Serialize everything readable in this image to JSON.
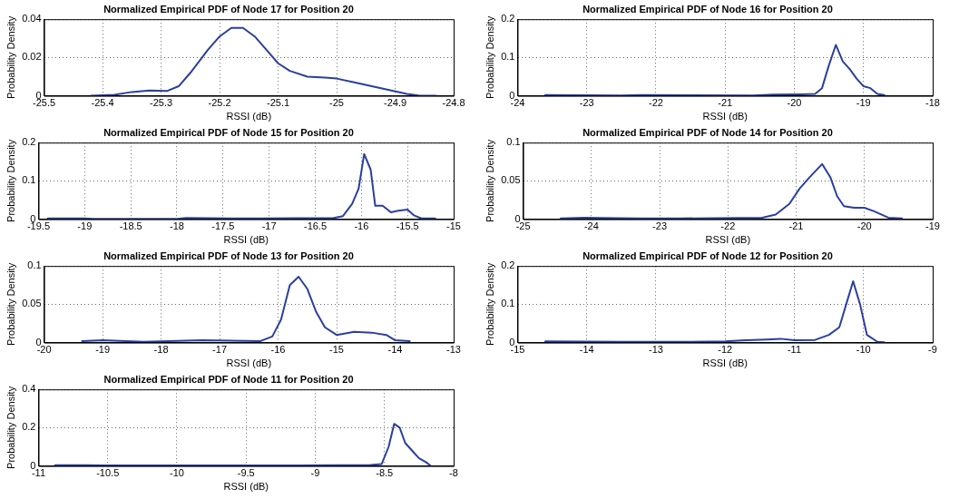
{
  "chart_data": [
    {
      "type": "line",
      "title": "Normalized Empirical PDF of Node 17 for Position 20",
      "xlabel": "RSSI (dB)",
      "ylabel": "Probability Density",
      "grid": true,
      "xlim": [
        -25.5,
        -24.8
      ],
      "xticks": [
        -25.5,
        -25.4,
        -25.3,
        -25.2,
        -25.1,
        -25,
        -24.9,
        -24.8
      ],
      "ylim": [
        0,
        0.04
      ],
      "yticks": [
        0,
        0.02,
        0.04
      ],
      "x": [
        -25.42,
        -25.38,
        -25.35,
        -25.32,
        -25.29,
        -25.27,
        -25.25,
        -25.22,
        -25.2,
        -25.18,
        -25.16,
        -25.14,
        -25.12,
        -25.1,
        -25.08,
        -25.05,
        -25.02,
        -25.0,
        -24.97,
        -24.94,
        -24.91,
        -24.88,
        -24.86,
        -24.83
      ],
      "series": [
        {
          "color": "#2b3f9e",
          "values": [
            0,
            0.0005,
            0.002,
            0.0028,
            0.0025,
            0.005,
            0.012,
            0.024,
            0.031,
            0.0355,
            0.0355,
            0.031,
            0.024,
            0.017,
            0.013,
            0.01,
            0.0095,
            0.009,
            0.007,
            0.005,
            0.003,
            0.001,
            0.0002,
            0
          ]
        }
      ]
    },
    {
      "type": "line",
      "title": "Normalized Empirical PDF of Node 16 for Position 20",
      "xlabel": "RSSI (dB)",
      "ylabel": "Probability Density",
      "grid": true,
      "xlim": [
        -24,
        -18
      ],
      "xticks": [
        -24,
        -23,
        -22,
        -21,
        -20,
        -19,
        -18
      ],
      "ylim": [
        0,
        0.2
      ],
      "yticks": [
        0,
        0.1,
        0.2
      ],
      "x": [
        -23.6,
        -22.5,
        -22.2,
        -20.6,
        -20.3,
        -19.9,
        -19.7,
        -19.6,
        -19.5,
        -19.4,
        -19.3,
        -19.2,
        -19.1,
        -19.0,
        -18.9,
        -18.8,
        -18.7
      ],
      "series": [
        {
          "color": "#2b3f9e",
          "values": [
            0.002,
            0.001,
            0.002,
            0.001,
            0.003,
            0.004,
            0.005,
            0.02,
            0.08,
            0.133,
            0.09,
            0.07,
            0.045,
            0.025,
            0.02,
            0.005,
            0.002
          ]
        }
      ]
    },
    {
      "type": "line",
      "title": "Normalized Empirical PDF of Node 15 for Position 20",
      "xlabel": "RSSI (dB)",
      "ylabel": "Probability Density",
      "grid": true,
      "xlim": [
        -19.5,
        -15
      ],
      "xticks": [
        -19.5,
        -19,
        -18.5,
        -18,
        -17.5,
        -17,
        -16.5,
        -16,
        -15.5,
        -15
      ],
      "ylim": [
        0,
        0.2
      ],
      "yticks": [
        0,
        0.1,
        0.2
      ],
      "x": [
        -19.4,
        -19.0,
        -18.9,
        -18.0,
        -17.9,
        -17.35,
        -17.1,
        -16.3,
        -16.2,
        -16.1,
        -16.03,
        -15.97,
        -15.9,
        -15.85,
        -15.77,
        -15.68,
        -15.6,
        -15.5,
        -15.43,
        -15.35,
        -15.2
      ],
      "series": [
        {
          "color": "#2b3f9e",
          "values": [
            0.002,
            0.002,
            0.001,
            0.001,
            0.003,
            0.002,
            0.002,
            0.003,
            0.008,
            0.04,
            0.08,
            0.17,
            0.13,
            0.035,
            0.035,
            0.018,
            0.022,
            0.025,
            0.01,
            0.002,
            0.002
          ]
        }
      ]
    },
    {
      "type": "line",
      "title": "Normalized Empirical PDF of Node 14 for Position 20",
      "xlabel": "RSSI (dB)",
      "ylabel": "Probability Density",
      "grid": true,
      "xlim": [
        -25,
        -19
      ],
      "xticks": [
        -25,
        -24,
        -23,
        -22,
        -21,
        -20,
        -19
      ],
      "ylim": [
        0,
        0.1
      ],
      "yticks": [
        0,
        0.05,
        0.1
      ],
      "x": [
        -24.45,
        -24.1,
        -23.3,
        -22.7,
        -21.5,
        -21.3,
        -21.1,
        -20.95,
        -20.8,
        -20.62,
        -20.5,
        -20.4,
        -20.3,
        -20.15,
        -20.0,
        -19.85,
        -19.65,
        -19.45
      ],
      "series": [
        {
          "color": "#2b3f9e",
          "values": [
            0.001,
            0.002,
            0.001,
            0.001,
            0.002,
            0.006,
            0.02,
            0.04,
            0.055,
            0.072,
            0.055,
            0.03,
            0.017,
            0.015,
            0.015,
            0.01,
            0.002,
            0.001
          ]
        }
      ]
    },
    {
      "type": "line",
      "title": "Normalized Empirical PDF of Node 13 for Position 20",
      "xlabel": "RSSI (dB)",
      "ylabel": "Probability Density",
      "grid": true,
      "xlim": [
        -20,
        -13
      ],
      "xticks": [
        -20,
        -19,
        -18,
        -17,
        -16,
        -15,
        -14,
        -13
      ],
      "ylim": [
        0,
        0.1
      ],
      "yticks": [
        0,
        0.05,
        0.1
      ],
      "x": [
        -19.35,
        -19.0,
        -18.3,
        -17.3,
        -16.3,
        -16.1,
        -15.95,
        -15.8,
        -15.65,
        -15.5,
        -15.35,
        -15.2,
        -15.0,
        -14.85,
        -14.7,
        -14.4,
        -14.15,
        -14.0,
        -13.75
      ],
      "series": [
        {
          "color": "#2b3f9e",
          "values": [
            0.002,
            0.003,
            0.001,
            0.003,
            0.002,
            0.008,
            0.03,
            0.075,
            0.086,
            0.07,
            0.04,
            0.02,
            0.01,
            0.012,
            0.014,
            0.013,
            0.01,
            0.003,
            0.002
          ]
        }
      ]
    },
    {
      "type": "line",
      "title": "Normalized Empirical PDF of Node 12 for Position 20",
      "xlabel": "RSSI (dB)",
      "ylabel": "Probability Density",
      "grid": true,
      "xlim": [
        -15,
        -9
      ],
      "xticks": [
        -15,
        -14,
        -13,
        -12,
        -11,
        -10,
        -9
      ],
      "ylim": [
        0,
        0.2
      ],
      "yticks": [
        0,
        0.1,
        0.2
      ],
      "x": [
        -14.6,
        -13.5,
        -12.5,
        -12.0,
        -11.7,
        -11.4,
        -11.2,
        -11.0,
        -10.7,
        -10.5,
        -10.35,
        -10.25,
        -10.15,
        -10.05,
        -9.95,
        -9.8,
        -9.7
      ],
      "series": [
        {
          "color": "#2b3f9e",
          "values": [
            0.003,
            0.002,
            0.002,
            0.003,
            0.006,
            0.008,
            0.01,
            0.006,
            0.007,
            0.02,
            0.04,
            0.1,
            0.16,
            0.1,
            0.02,
            0.002,
            0.001
          ]
        }
      ]
    },
    {
      "type": "line",
      "title": "Normalized Empirical PDF of Node 11 for Position 20",
      "xlabel": "RSSI (dB)",
      "ylabel": "Probability Density",
      "grid": true,
      "xlim": [
        -11,
        -8
      ],
      "xticks": [
        -11,
        -10.5,
        -10,
        -9.5,
        -9,
        -8.5,
        -8
      ],
      "ylim": [
        0,
        0.4
      ],
      "yticks": [
        0,
        0.2,
        0.4
      ],
      "x": [
        -10.88,
        -10.65,
        -10.52,
        -10.05,
        -9.12,
        -8.6,
        -8.52,
        -8.47,
        -8.43,
        -8.39,
        -8.35,
        -8.3,
        -8.25,
        -8.2,
        -8.17
      ],
      "series": [
        {
          "color": "#2b3f9e",
          "values": [
            0.004,
            0.004,
            0.003,
            0.003,
            0.003,
            0.005,
            0.01,
            0.1,
            0.22,
            0.2,
            0.12,
            0.08,
            0.04,
            0.02,
            0.003
          ]
        }
      ]
    }
  ]
}
